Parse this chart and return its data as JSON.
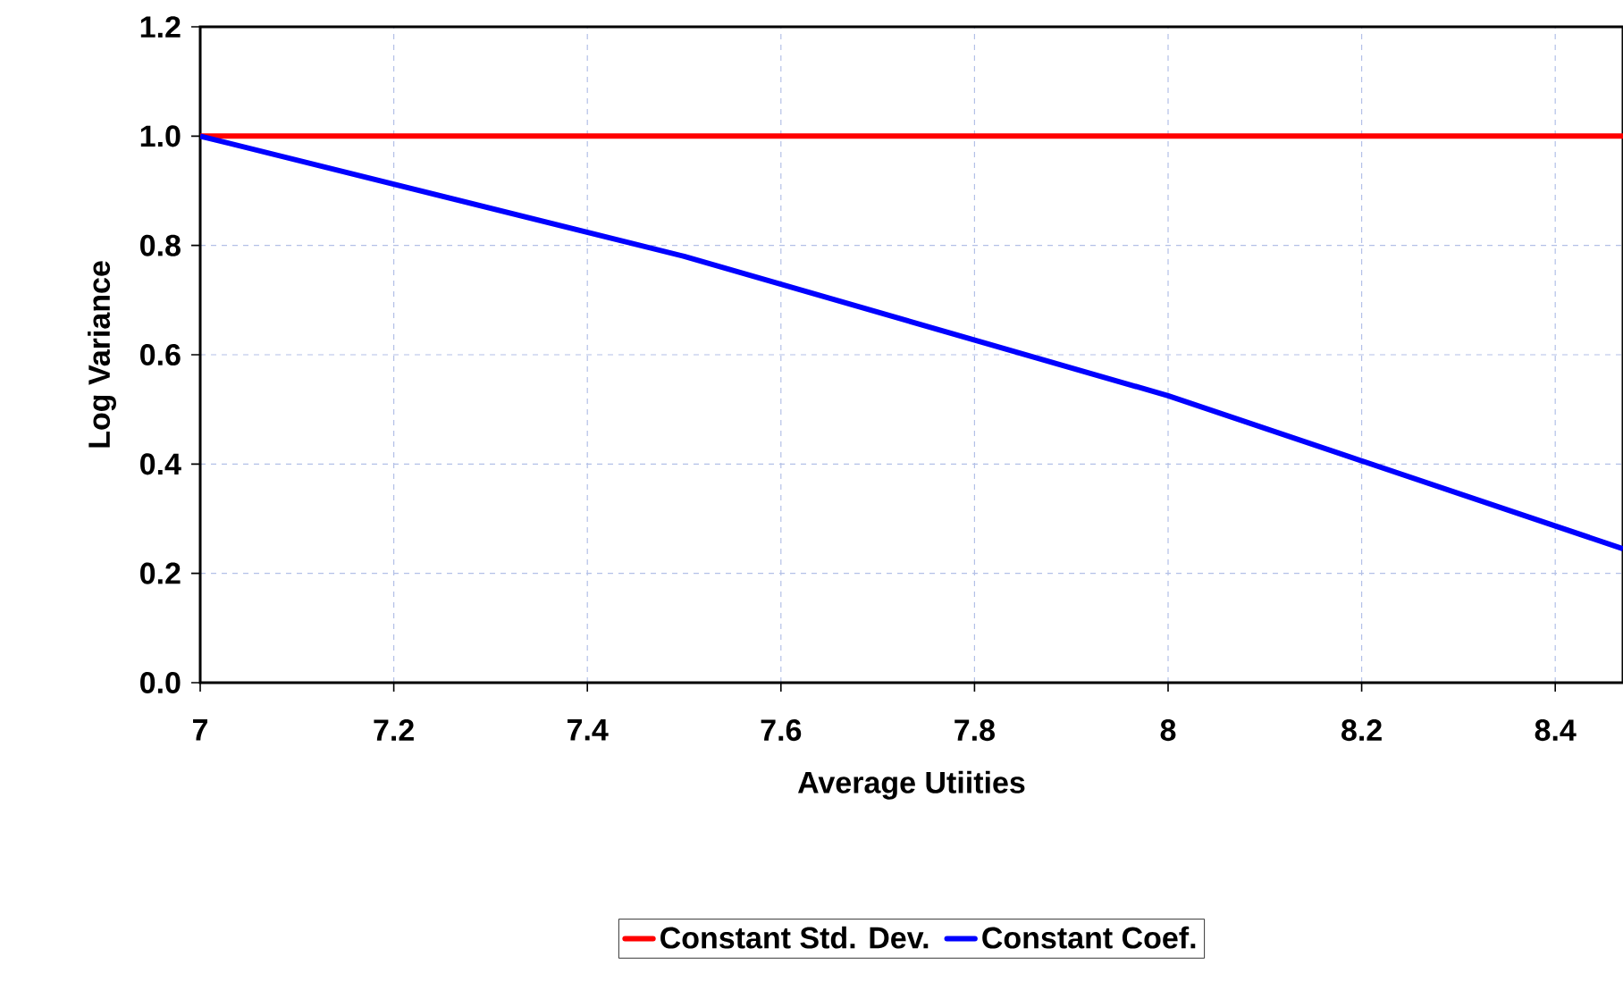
{
  "chart_data": {
    "type": "line",
    "xlabel": "Average Utiities",
    "ylabel": "Log Variance",
    "series": [
      {
        "name": "Constant Std. Dev.",
        "color": "#ff0000",
        "x": [
          7,
          8.47
        ],
        "values": [
          1.0,
          1.0
        ]
      },
      {
        "name": "Constant Coef.",
        "color": "#0000ff",
        "x": [
          7,
          7.5,
          8,
          8.47
        ],
        "values": [
          1.0,
          0.78,
          0.525,
          0.245
        ]
      }
    ],
    "xlim": [
      7,
      8.47
    ],
    "xticks": [
      7,
      7.2,
      7.4,
      7.6,
      7.8,
      8,
      8.2,
      8.4
    ],
    "ylim": [
      0,
      1.2
    ],
    "yticks": [
      {
        "value": 0,
        "label": "0.0"
      },
      {
        "value": 0.2,
        "label": "0.2"
      },
      {
        "value": 0.4,
        "label": "0.4"
      },
      {
        "value": 0.6,
        "label": "0.6"
      },
      {
        "value": 0.8,
        "label": "0.8"
      },
      {
        "value": 1.0,
        "label": "1.0"
      },
      {
        "value": 1.2,
        "label": "1.2"
      }
    ],
    "grid": true,
    "legend": "bottom",
    "marker": "none",
    "line_style": "solid"
  }
}
